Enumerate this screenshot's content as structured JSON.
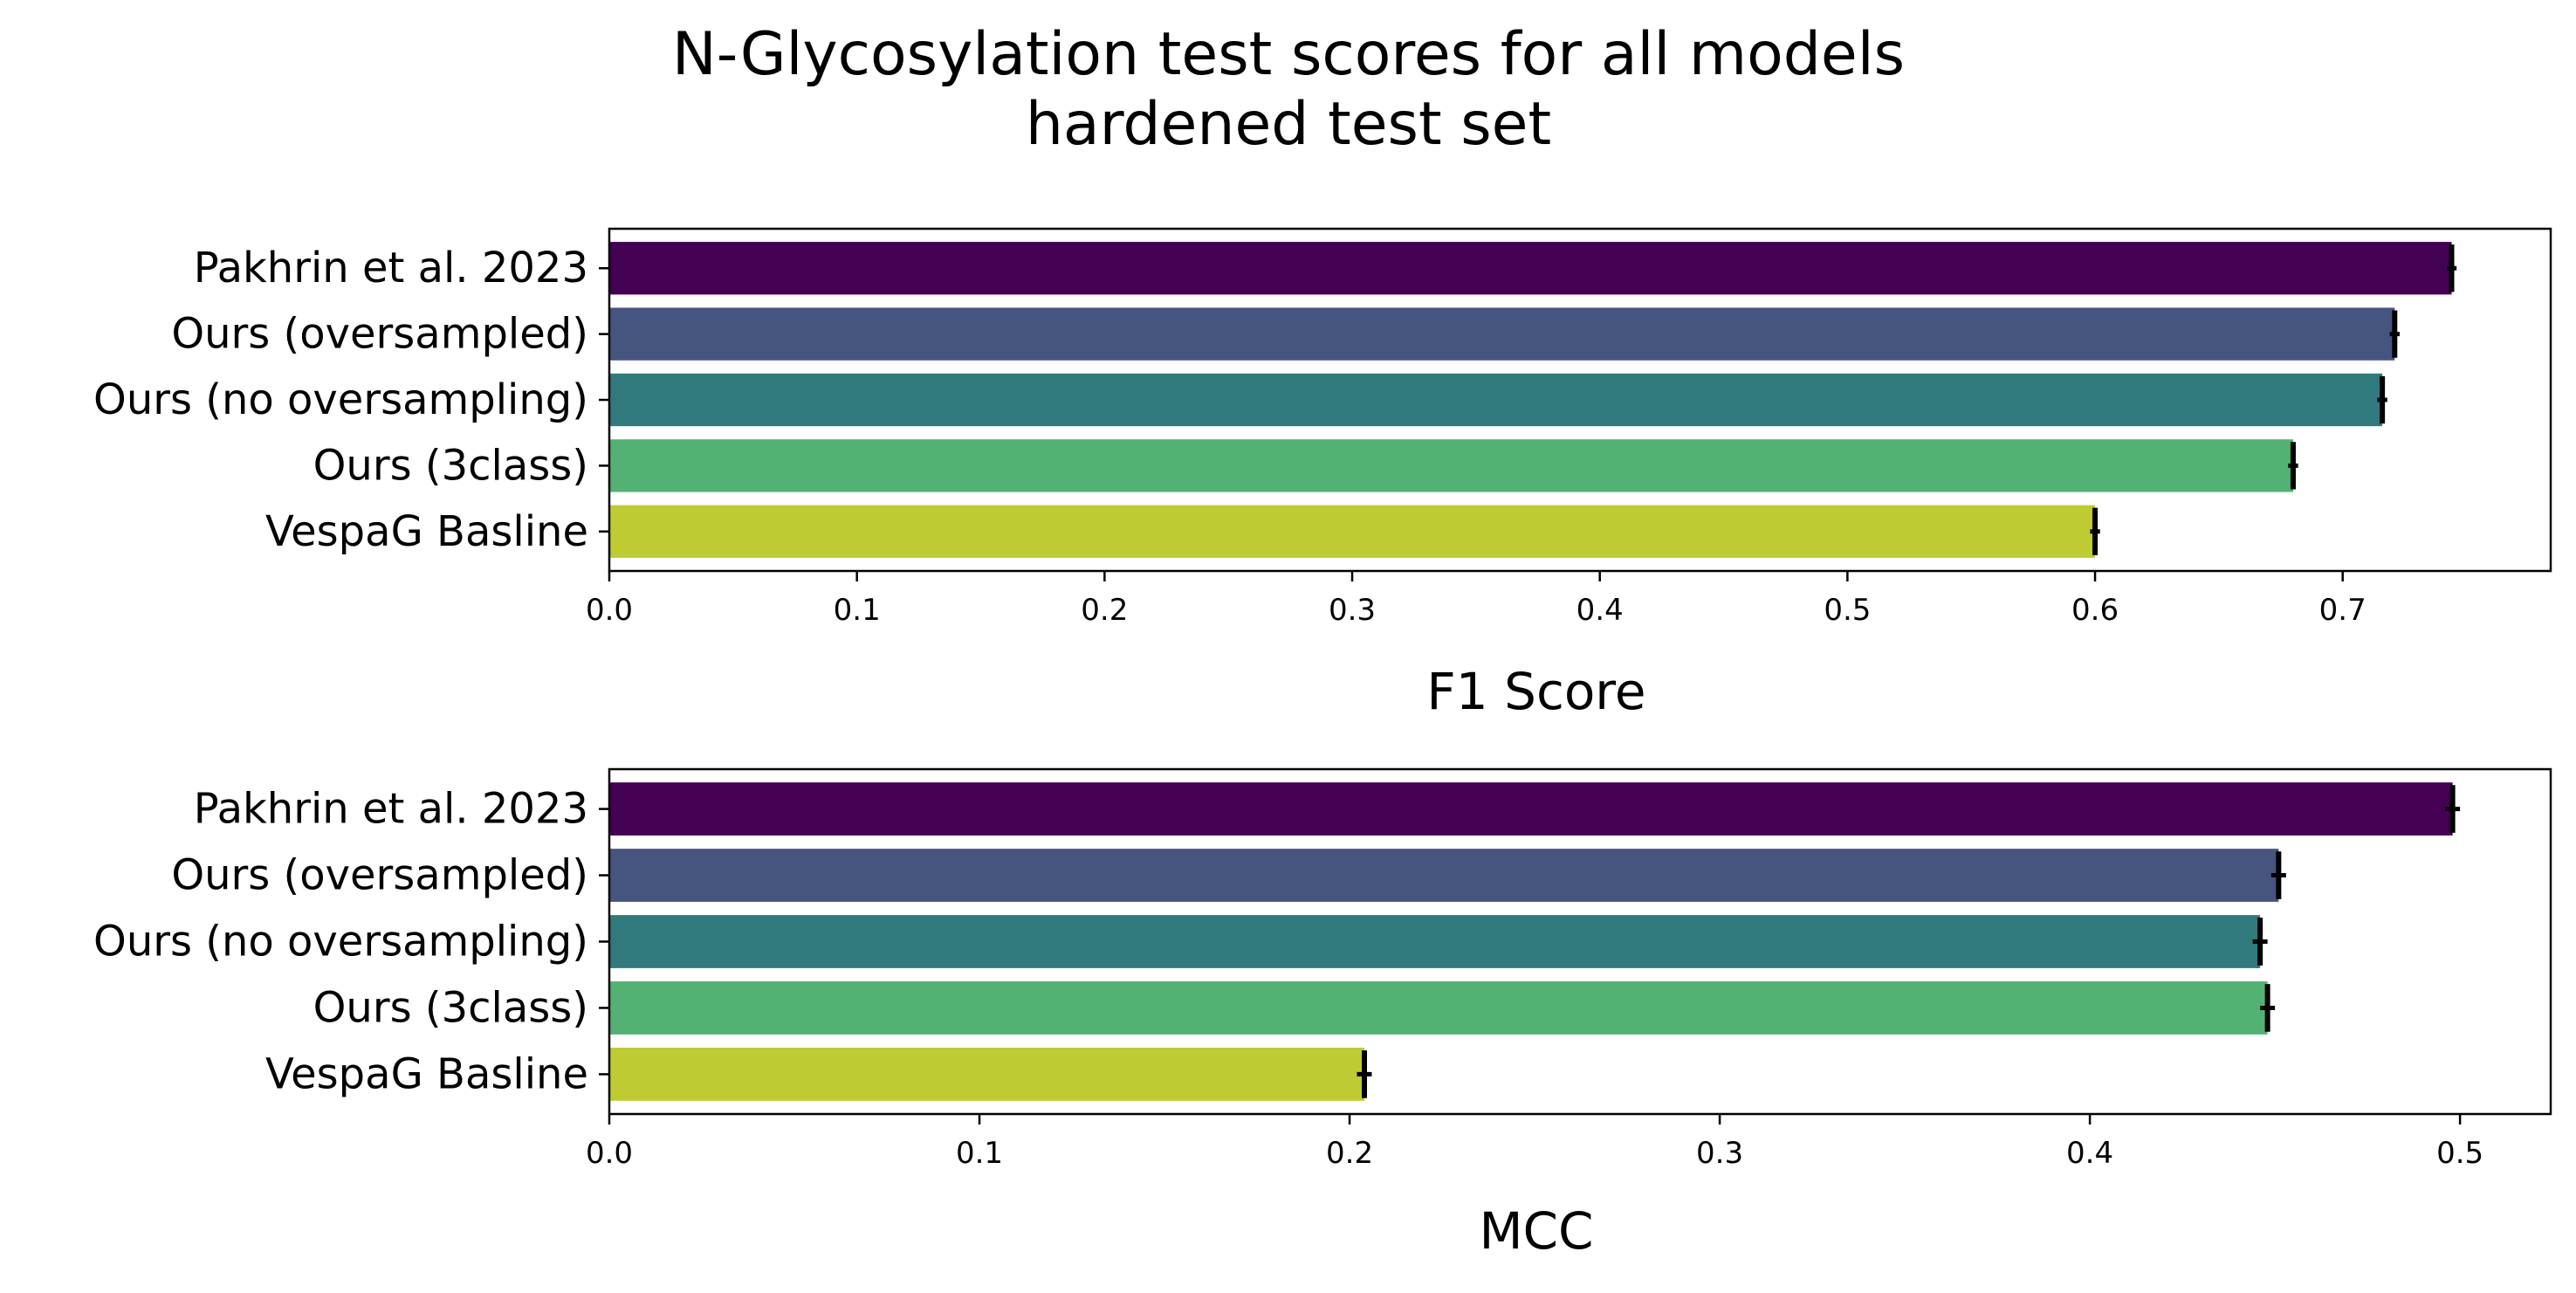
{
  "title_line1": "N-Glycosylation test scores for all models",
  "title_line2": "hardened test set",
  "colors": [
    "#440154",
    "#46557f",
    "#307a7e",
    "#52b173",
    "#bfcb32"
  ],
  "chart_data": [
    {
      "type": "bar",
      "orientation": "horizontal",
      "categories": [
        "Pakhrin et al. 2023",
        "Ours (oversampled)",
        "Ours (no oversampling)",
        "Ours (3class)",
        "VespaG Basline"
      ],
      "values": [
        0.744,
        0.721,
        0.716,
        0.68,
        0.6
      ],
      "errors": [
        0.002,
        0.002,
        0.002,
        0.002,
        0.002
      ],
      "xlabel": "F1 Score",
      "xlim": [
        0,
        0.784
      ],
      "xticks": [
        "0.0",
        "0.1",
        "0.2",
        "0.3",
        "0.4",
        "0.5",
        "0.6",
        "0.7"
      ],
      "grid": false
    },
    {
      "type": "bar",
      "orientation": "horizontal",
      "categories": [
        "Pakhrin et al. 2023",
        "Ours (oversampled)",
        "Ours (no oversampling)",
        "Ours (3class)",
        "VespaG Basline"
      ],
      "values": [
        0.498,
        0.451,
        0.446,
        0.448,
        0.204
      ],
      "errors": [
        0.002,
        0.002,
        0.002,
        0.002,
        0.002
      ],
      "xlabel": "MCC",
      "xlim": [
        0,
        0.5245
      ],
      "xticks": [
        "0.0",
        "0.1",
        "0.2",
        "0.3",
        "0.4",
        "0.5"
      ],
      "grid": false
    }
  ]
}
